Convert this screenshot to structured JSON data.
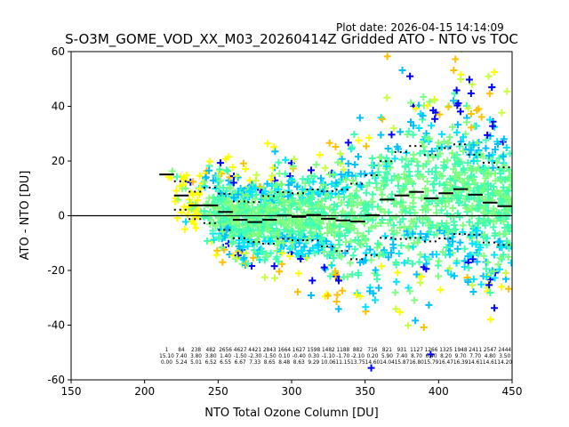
{
  "plot_date": "Plot date: 2026-04-15 14:14:09",
  "chart_data": {
    "type": "scatter",
    "title": "S-O3M_GOME_VOD_XX_M03_20260414Z Gridded ATO - NTO vs TOC",
    "xlabel": "NTO Total Ozone Column [DU]",
    "ylabel": "ATO - NTO [DU]",
    "xlim": [
      150,
      450
    ],
    "ylim": [
      -60,
      60
    ],
    "xticks": [
      150,
      200,
      250,
      300,
      350,
      400,
      450
    ],
    "yticks": [
      -60,
      -40,
      -20,
      0,
      20,
      40,
      60
    ],
    "zero_line": 0,
    "point_marker": "+",
    "density_colors": [
      "#0000ff",
      "#00bfff",
      "#00e5ff",
      "#40ffb0",
      "#7fff80",
      "#c8ff40",
      "#ffff00",
      "#ffc000"
    ],
    "bins": [
      {
        "x": 215,
        "mean": 15.1,
        "std": 0.0,
        "count": "1",
        "std_label": "0.00"
      },
      {
        "x": 225,
        "mean": 7.4,
        "std": 5.2,
        "count": "84",
        "std_label": "5.24"
      },
      {
        "x": 235,
        "mean": 3.8,
        "std": 5.0,
        "count": "238",
        "std_label": "5.01"
      },
      {
        "x": 245,
        "mean": 3.8,
        "std": 6.5,
        "count": "482",
        "std_label": "6.52"
      },
      {
        "x": 255,
        "mean": 1.4,
        "std": 6.6,
        "count": "2656",
        "std_label": "6.55"
      },
      {
        "x": 265,
        "mean": -1.5,
        "std": 6.7,
        "count": "4627",
        "std_label": "6.67"
      },
      {
        "x": 275,
        "mean": -2.3,
        "std": 7.3,
        "count": "4421",
        "std_label": "7.33"
      },
      {
        "x": 285,
        "mean": -1.5,
        "std": 8.7,
        "count": "2843",
        "std_label": "8.65"
      },
      {
        "x": 295,
        "mean": 0.1,
        "std": 8.5,
        "count": "1664",
        "std_label": "8.48"
      },
      {
        "x": 305,
        "mean": -0.4,
        "std": 8.6,
        "count": "1627",
        "std_label": "8.63"
      },
      {
        "x": 315,
        "mean": 0.3,
        "std": 9.3,
        "count": "1598",
        "std_label": "9.29"
      },
      {
        "x": 325,
        "mean": -1.1,
        "std": 10.1,
        "count": "1482",
        "std_label": "10.06"
      },
      {
        "x": 335,
        "mean": -1.7,
        "std": 11.2,
        "count": "1188",
        "std_label": "11.15"
      },
      {
        "x": 345,
        "mean": -2.1,
        "std": 13.8,
        "count": "882",
        "std_label": "13.75"
      },
      {
        "x": 355,
        "mean": 0.2,
        "std": 14.6,
        "count": "716",
        "std_label": "14.60"
      },
      {
        "x": 365,
        "mean": 5.9,
        "std": 14.0,
        "count": "821",
        "std_label": "14.04"
      },
      {
        "x": 375,
        "mean": 7.4,
        "std": 15.9,
        "count": "931",
        "std_label": "15.87"
      },
      {
        "x": 385,
        "mean": 8.7,
        "std": 16.8,
        "count": "1127",
        "std_label": "16.80"
      },
      {
        "x": 395,
        "mean": 6.4,
        "std": 15.8,
        "count": "1266",
        "std_label": "15.79"
      },
      {
        "x": 405,
        "mean": 8.2,
        "std": 16.5,
        "count": "1325",
        "std_label": "16.47"
      },
      {
        "x": 415,
        "mean": 9.7,
        "std": 16.4,
        "count": "1948",
        "std_label": "16.39"
      },
      {
        "x": 425,
        "mean": 7.7,
        "std": 14.6,
        "count": "2411",
        "std_label": "14.61"
      },
      {
        "x": 435,
        "mean": 4.8,
        "std": 14.6,
        "count": "2547",
        "std_label": "14.61"
      },
      {
        "x": 445,
        "mean": 3.5,
        "std": 14.2,
        "count": "2444",
        "std_label": "14.20"
      }
    ]
  }
}
